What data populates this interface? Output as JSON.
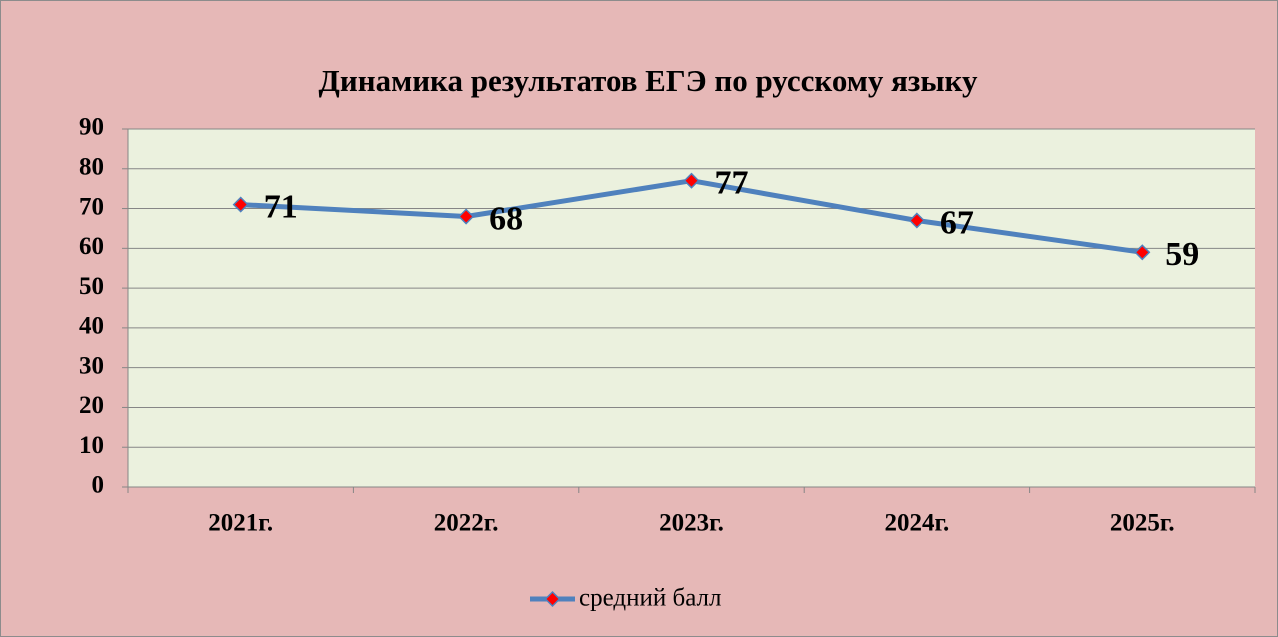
{
  "chart_data": {
    "type": "line",
    "title": "Динамика результатов ЕГЭ по русскому языку",
    "categories": [
      "2021г.",
      "2022г.",
      "2023г.",
      "2024г.",
      "2025г."
    ],
    "series": [
      {
        "name": "средний балл",
        "color": "#4f81bd",
        "marker_color": "#ff0000",
        "values": [
          71,
          68,
          77,
          67,
          59
        ]
      }
    ],
    "ylim": [
      0,
      90
    ],
    "yticks": [
      0,
      10,
      20,
      30,
      40,
      50,
      60,
      70,
      80,
      90
    ],
    "grid": true,
    "legend": "bottom"
  }
}
